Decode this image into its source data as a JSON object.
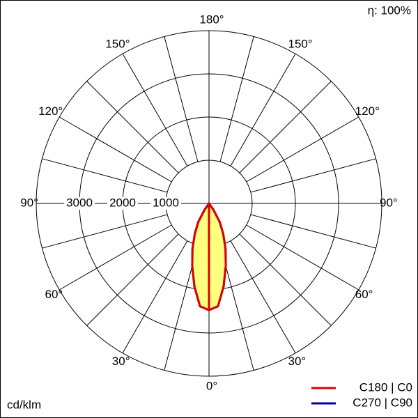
{
  "chart_data": {
    "type": "polar",
    "efficiency_label": "η: 100%",
    "unit": "cd/klm",
    "rlim": [
      0,
      4000
    ],
    "rticks": [
      1000,
      2000,
      3000
    ],
    "angle_step": 15,
    "angle_ticks": [
      {
        "value": 0,
        "label": "0°"
      },
      {
        "value": 30,
        "label": "30°"
      },
      {
        "value": 60,
        "label": "60°"
      },
      {
        "value": 90,
        "label": "90°"
      },
      {
        "value": 120,
        "label": "120°"
      },
      {
        "value": 150,
        "label": "150°"
      },
      {
        "value": 180,
        "label": "180°"
      }
    ],
    "angles": [
      0,
      5,
      10,
      15,
      20,
      25,
      30,
      35,
      40
    ],
    "fill_color": "#ffff80",
    "series": [
      {
        "name": "C270 | C90",
        "color": "#0000aa",
        "values": [
          2470,
          2390,
          1950,
          1500,
          1120,
          780,
          500,
          180,
          0
        ]
      },
      {
        "name": "C180 | C0",
        "color": "#dd0000",
        "values": [
          2470,
          2390,
          1950,
          1500,
          1120,
          780,
          500,
          180,
          0
        ]
      }
    ]
  }
}
